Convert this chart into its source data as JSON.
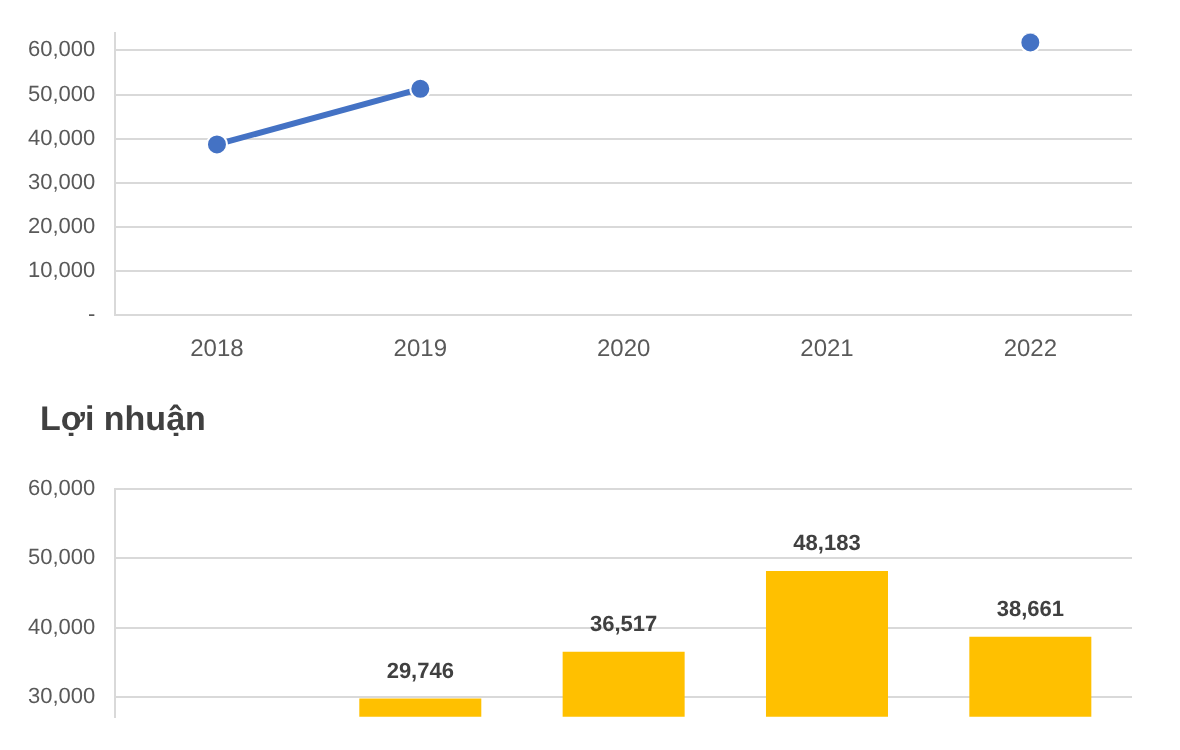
{
  "chart_data": [
    {
      "type": "line",
      "categories": [
        "2018",
        "2019",
        "2020",
        "2021",
        "2022"
      ],
      "series": [
        {
          "color": "#4472c4",
          "values": [
            38700,
            51300,
            null,
            null,
            61800
          ]
        }
      ],
      "ylim": [
        0,
        63900
      ],
      "yticks": [
        {
          "value": 0,
          "label": "-"
        },
        {
          "value": 10000,
          "label": "10,000"
        },
        {
          "value": 20000,
          "label": "20,000"
        },
        {
          "value": 30000,
          "label": "30,000"
        },
        {
          "value": 40000,
          "label": "40,000"
        },
        {
          "value": 50000,
          "label": "50,000"
        },
        {
          "value": 60000,
          "label": "60,000"
        }
      ],
      "grid": "y",
      "marker": "circle",
      "legend": false
    },
    {
      "type": "bar",
      "title": "Lợi nhuận",
      "categories": [
        null,
        null,
        null,
        null,
        null
      ],
      "series": [
        {
          "color": "#ffc000",
          "values": [
            null,
            29746,
            36517,
            48183,
            38661
          ],
          "value_labels": [
            null,
            "29,746",
            "36,517",
            "48,183",
            "38,661"
          ]
        }
      ],
      "ylim": [
        27100,
        60000
      ],
      "yticks": [
        {
          "value": 30000,
          "label": "30,000"
        },
        {
          "value": 40000,
          "label": "40,000"
        },
        {
          "value": 50000,
          "label": "50,000"
        },
        {
          "value": 60000,
          "label": "60,000"
        }
      ],
      "grid": "y",
      "tick_labels": "y",
      "legend": false
    }
  ]
}
